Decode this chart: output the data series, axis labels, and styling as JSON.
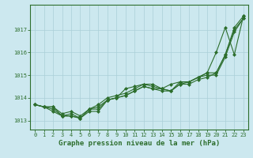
{
  "xlabel": "Graphe pression niveau de la mer (hPa)",
  "x": [
    0,
    1,
    2,
    3,
    4,
    5,
    6,
    7,
    8,
    9,
    10,
    11,
    12,
    13,
    14,
    15,
    16,
    17,
    18,
    19,
    20,
    21,
    22,
    23
  ],
  "series": [
    [
      1013.7,
      1013.6,
      1013.6,
      1013.2,
      1013.2,
      1013.1,
      1013.5,
      1013.6,
      1013.9,
      1014.0,
      1014.4,
      1014.5,
      1014.6,
      1014.5,
      1014.4,
      1014.6,
      1014.7,
      1014.7,
      1014.9,
      1015.1,
      1016.0,
      1017.1,
      1015.9,
      1017.6
    ],
    [
      1013.7,
      1013.6,
      1013.4,
      1013.2,
      1013.3,
      1013.1,
      1013.4,
      1013.4,
      1013.9,
      1014.0,
      1014.1,
      1014.3,
      1014.5,
      1014.4,
      1014.3,
      1014.3,
      1014.6,
      1014.6,
      1014.8,
      1014.9,
      1015.1,
      1015.9,
      1017.0,
      1017.5
    ],
    [
      1013.7,
      1013.6,
      1013.5,
      1013.2,
      1013.2,
      1013.1,
      1013.5,
      1013.5,
      1013.9,
      1014.0,
      1014.1,
      1014.3,
      1014.5,
      1014.4,
      1014.4,
      1014.3,
      1014.6,
      1014.7,
      1014.9,
      1015.0,
      1015.0,
      1015.8,
      1016.9,
      1017.5
    ],
    [
      1013.7,
      1013.6,
      1013.6,
      1013.3,
      1013.4,
      1013.2,
      1013.5,
      1013.7,
      1014.0,
      1014.1,
      1014.2,
      1014.4,
      1014.6,
      1014.6,
      1014.4,
      1014.3,
      1014.7,
      1014.7,
      1014.9,
      1015.1,
      1015.1,
      1015.9,
      1017.1,
      1017.6
    ]
  ],
  "line_color": "#2d6e2d",
  "marker": "D",
  "markersize": 2.0,
  "linewidth": 0.8,
  "bg_color": "#cce8ef",
  "grid_color": "#aacfd8",
  "ylim": [
    1012.6,
    1018.1
  ],
  "yticks": [
    1013,
    1014,
    1015,
    1016,
    1017
  ],
  "xticks": [
    0,
    1,
    2,
    3,
    4,
    5,
    6,
    7,
    8,
    9,
    10,
    11,
    12,
    13,
    14,
    15,
    16,
    17,
    18,
    19,
    20,
    21,
    22,
    23
  ],
  "tick_fontsize": 5.0,
  "label_fontsize": 6.5,
  "label_fontweight": "bold"
}
